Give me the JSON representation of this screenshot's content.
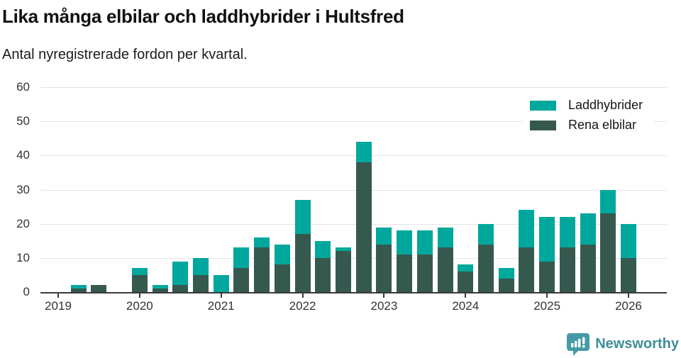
{
  "header": {
    "title": "Lika många elbilar och laddhybrider i Hultsfred",
    "subtitle": "Antal nyregistrerade fordon per kvartal."
  },
  "footer": {
    "brand": "Newsworthy"
  },
  "colors": {
    "laddhybrider": "#00a79c",
    "rena_elbilar": "#36594f",
    "axis": "#3a3a3a",
    "tick_text": "#333333",
    "brand_text": "#3f8e96",
    "logo": "#459ba5"
  },
  "chart_data": {
    "type": "bar",
    "stacked": true,
    "title": "Lika många elbilar och laddhybrider i Hultsfred",
    "subtitle": "Antal nyregistrerade fordon per kvartal.",
    "x": [
      "2019 Q1",
      "2019 Q2",
      "2019 Q3",
      "2019 Q4",
      "2020 Q1",
      "2020 Q2",
      "2020 Q3",
      "2020 Q4",
      "2021 Q1",
      "2021 Q2",
      "2021 Q3",
      "2021 Q4",
      "2022 Q1",
      "2022 Q2",
      "2022 Q3",
      "2022 Q4",
      "2023 Q1",
      "2023 Q2",
      "2023 Q3",
      "2023 Q4",
      "2024 Q1",
      "2024 Q2",
      "2024 Q3",
      "2024 Q4",
      "2025 Q1",
      "2025 Q2",
      "2025 Q3",
      "2025 Q4",
      "2026 Q1"
    ],
    "series": [
      {
        "name": "Rena elbilar",
        "color": "#36594f",
        "values": [
          0,
          1,
          2,
          0,
          5,
          1,
          2,
          5,
          0,
          7,
          13,
          8,
          17,
          10,
          12,
          38,
          14,
          11,
          11,
          13,
          6,
          14,
          4,
          13,
          9,
          13,
          14,
          23,
          10
        ]
      },
      {
        "name": "Laddhybrider",
        "color": "#00a79c",
        "values": [
          0,
          1,
          0,
          0,
          2,
          1,
          7,
          5,
          5,
          6,
          3,
          6,
          10,
          5,
          1,
          6,
          5,
          7,
          7,
          6,
          2,
          6,
          3,
          11,
          13,
          9,
          9,
          7,
          10
        ]
      }
    ],
    "year_ticks": [
      "2019",
      "2020",
      "2021",
      "2022",
      "2023",
      "2024",
      "2025",
      "2026"
    ],
    "yticks": [
      0,
      10,
      20,
      30,
      40,
      50,
      60
    ],
    "ylim": [
      0,
      60
    ],
    "grid": true,
    "legend_position": "top-right",
    "legend_order": [
      "Laddhybrider",
      "Rena elbilar"
    ]
  }
}
